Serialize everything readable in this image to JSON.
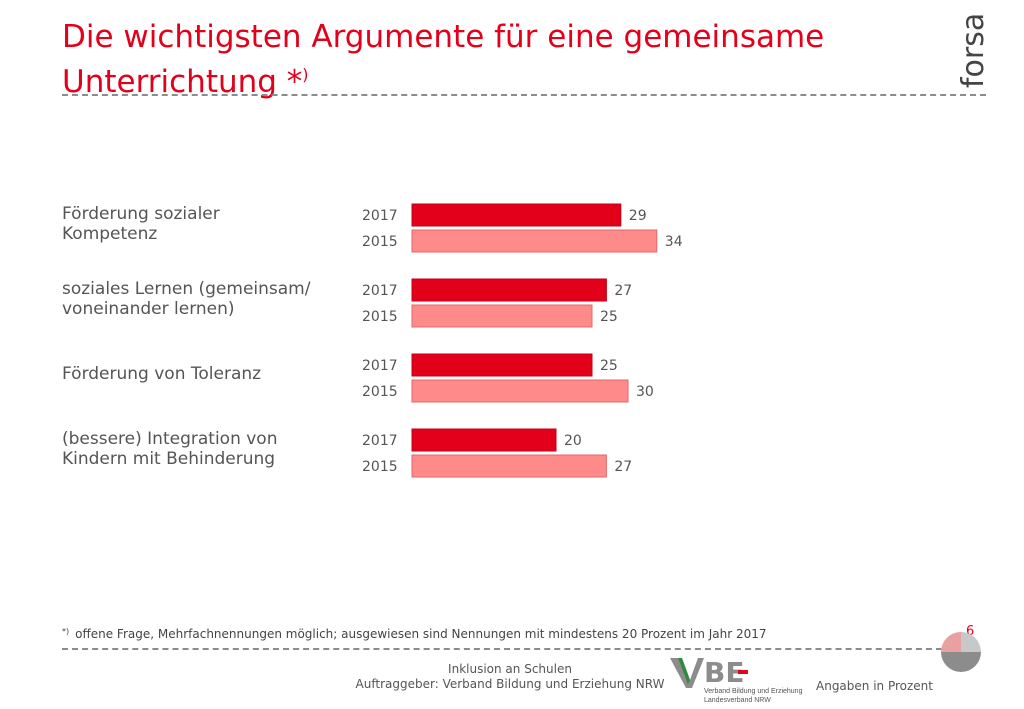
{
  "title": {
    "line1": "Die wichtigsten Argumente für eine gemeinsame",
    "line2": "Unterrichtung *",
    "sup": ")"
  },
  "brand": {
    "logo_text": "forsa.",
    "logo_icon": "forsa-logo"
  },
  "colors": {
    "accent": "#e2001a",
    "bar_2017": "#e2001a",
    "bar_2015": "#ff8a8a"
  },
  "chart_data": {
    "type": "bar",
    "orientation": "horizontal",
    "categories": [
      "Förderung sozialer Kompetenz",
      "soziales Lernen (gemeinsam/ voneinander lernen)",
      "Förderung von Toleranz",
      "(bessere) Integration von Kindern mit Behinderung"
    ],
    "category_lines": [
      [
        "Förderung sozialer",
        "Kompetenz"
      ],
      [
        "soziales Lernen (gemeinsam/",
        "voneinander lernen)"
      ],
      [
        "Förderung von Toleranz"
      ],
      [
        "(bessere) Integration von",
        "Kindern mit Behinderung"
      ]
    ],
    "series": [
      {
        "name": "2017",
        "values": [
          29,
          27,
          25,
          20
        ],
        "color": "#e2001a"
      },
      {
        "name": "2015",
        "values": [
          34,
          25,
          30,
          27
        ],
        "color": "#ff8a8a"
      }
    ],
    "unit": "Angaben in Prozent",
    "grid": false,
    "legend": "none"
  },
  "footnote": {
    "sup": "*)",
    "text": "offene Frage, Mehrfachnennungen möglich; ausgewiesen sind Nennungen mit mindestens 20 Prozent im Jahr  2017"
  },
  "page_number": "6",
  "footer": {
    "line1": "Inklusion an Schulen",
    "line2": "Auftraggeber: Verband Bildung und Erziehung NRW",
    "unit_note": "Angaben in Prozent",
    "vbe_sub1": "Verband Bildung und Erziehung",
    "vbe_sub2": "Landesverband NRW"
  }
}
